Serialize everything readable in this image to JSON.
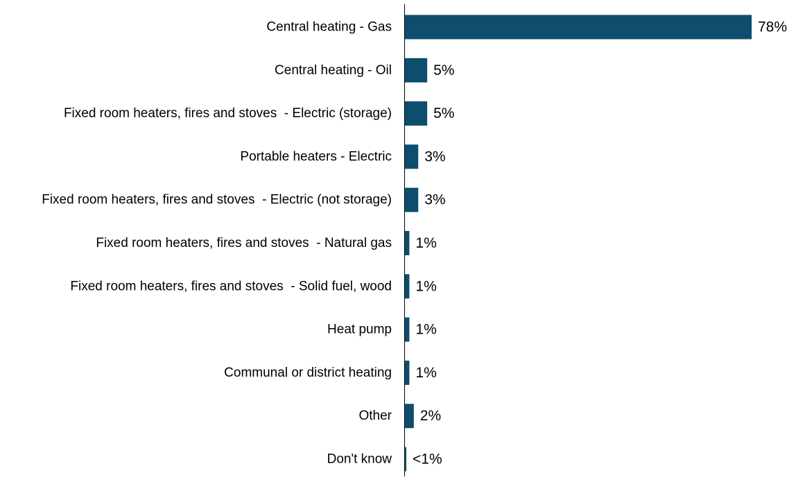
{
  "chart_data": {
    "type": "bar",
    "orientation": "horizontal",
    "title": "",
    "xlabel": "",
    "ylabel": "",
    "grid": false,
    "legend": "none",
    "xlim": [
      0,
      78
    ],
    "bar_color": "#0e4d6e",
    "categories": [
      "Central heating - Gas",
      "Central heating - Oil",
      "Fixed room heaters, fires and stoves  - Electric (storage)",
      "Portable heaters - Electric",
      "Fixed room heaters, fires and stoves  - Electric (not storage)",
      "Fixed room heaters, fires and stoves  - Natural gas",
      "Fixed room heaters, fires and stoves  - Solid fuel, wood",
      "Heat pump",
      "Communal or district heating",
      "Other",
      "Don't know"
    ],
    "values": [
      78,
      5,
      5,
      3,
      3,
      1,
      1,
      1,
      1,
      2,
      0.3
    ],
    "data_labels": [
      "78%",
      "5%",
      "5%",
      "3%",
      "3%",
      "1%",
      "1%",
      "1%",
      "1%",
      "2%",
      "<1%"
    ]
  }
}
